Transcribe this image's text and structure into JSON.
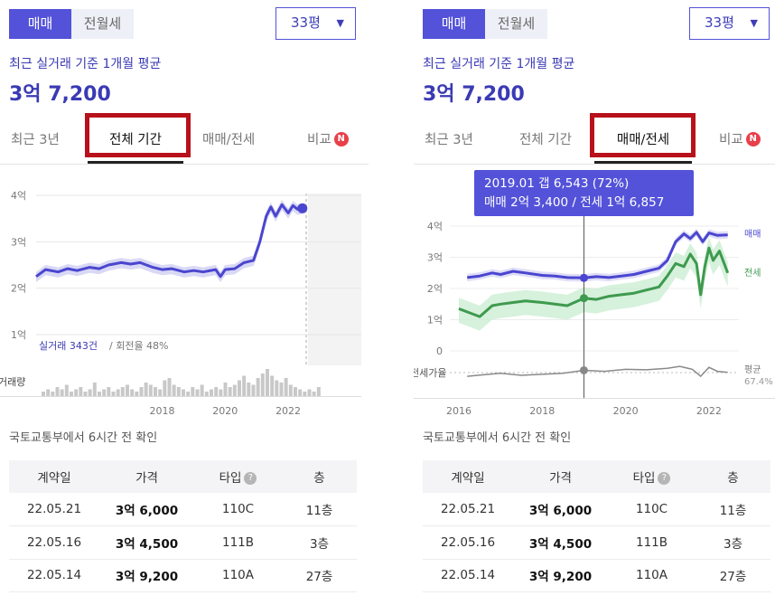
{
  "deal_toggle": {
    "options": [
      "매매",
      "전월세"
    ],
    "selected": "매매"
  },
  "size_select": {
    "value": "33평"
  },
  "average": {
    "label": "최근 실거래 기준 1개월 평균",
    "value": "3억 7,200"
  },
  "tabs": {
    "items": [
      "최근 3년",
      "전체 기간",
      "매매/전세",
      "비교"
    ],
    "badge": "N"
  },
  "left": {
    "active_tab": "전체 기간",
    "stats": {
      "trade_label": "실거래 343건",
      "turnover_label": "/ 회전율 48%"
    },
    "volume_label": "거래량"
  },
  "right": {
    "active_tab": "매매/전세",
    "tooltip": {
      "line1": "2019.01  갭 6,543 (72%)",
      "line2": "매매 2억 3,400 / 전세 1억 6,857"
    },
    "series_labels": {
      "sale": "매매",
      "jeonse": "전세"
    },
    "ratio_label": "전세가율",
    "ratio_avg_label": "평균",
    "ratio_avg_value": "67.4%"
  },
  "chart_data": [
    {
      "type": "line",
      "x_range": [
        2014.0,
        2022.6
      ],
      "xticks": [
        "2018",
        "2020",
        "2022"
      ],
      "y_unit": "억",
      "ylim": [
        1,
        4
      ],
      "yticks": [
        "4억",
        "3억",
        "2억",
        "1억"
      ],
      "series": [
        {
          "name": "매매",
          "color": "#4a46cf",
          "x": [
            2014.0,
            2014.3,
            2014.7,
            2015.0,
            2015.3,
            2015.7,
            2016.0,
            2016.3,
            2016.7,
            2017.0,
            2017.3,
            2017.7,
            2018.0,
            2018.3,
            2018.7,
            2019.0,
            2019.3,
            2019.7,
            2019.85,
            2020.0,
            2020.3,
            2020.6,
            2020.9,
            2021.1,
            2021.3,
            2021.45,
            2021.6,
            2021.8,
            2022.0,
            2022.15,
            2022.3,
            2022.45
          ],
          "values": [
            2.25,
            2.4,
            2.35,
            2.42,
            2.38,
            2.45,
            2.42,
            2.5,
            2.55,
            2.52,
            2.55,
            2.45,
            2.4,
            2.42,
            2.35,
            2.38,
            2.35,
            2.4,
            2.25,
            2.4,
            2.42,
            2.55,
            2.6,
            3.0,
            3.55,
            3.75,
            3.55,
            3.8,
            3.62,
            3.78,
            3.7,
            3.72
          ]
        }
      ],
      "volume": {
        "label": "거래량",
        "values": [
          2,
          3,
          2,
          4,
          3,
          5,
          2,
          3,
          4,
          2,
          3,
          6,
          2,
          3,
          4,
          2,
          3,
          4,
          5,
          3,
          2,
          4,
          6,
          5,
          4,
          3,
          7,
          8,
          5,
          4,
          3,
          2,
          4,
          3,
          5,
          2,
          3,
          4,
          3,
          6,
          4,
          5,
          7,
          9,
          6,
          5,
          8,
          10,
          12,
          9,
          7,
          6,
          8,
          5,
          4,
          3,
          2,
          3,
          2,
          4
        ]
      }
    },
    {
      "type": "line",
      "x_range": [
        2016.0,
        2022.5
      ],
      "xticks": [
        "2016",
        "2018",
        "2020",
        "2022"
      ],
      "y_unit": "억",
      "ylim": [
        0,
        4
      ],
      "yticks": [
        "4억",
        "3억",
        "2억",
        "1억",
        "0"
      ],
      "series": [
        {
          "name": "매매",
          "color": "#4a46cf",
          "x": [
            2016.2,
            2016.5,
            2016.8,
            2017.0,
            2017.3,
            2017.6,
            2018.0,
            2018.3,
            2018.6,
            2019.0,
            2019.3,
            2019.6,
            2019.9,
            2020.2,
            2020.5,
            2020.8,
            2021.0,
            2021.2,
            2021.4,
            2021.55,
            2021.7,
            2021.85,
            2022.0,
            2022.2,
            2022.45
          ],
          "values": [
            2.35,
            2.4,
            2.5,
            2.45,
            2.55,
            2.5,
            2.42,
            2.4,
            2.35,
            2.34,
            2.38,
            2.35,
            2.4,
            2.45,
            2.55,
            2.65,
            2.9,
            3.5,
            3.75,
            3.6,
            3.8,
            3.5,
            3.78,
            3.7,
            3.72
          ]
        },
        {
          "name": "전세",
          "color": "#3e9a4e",
          "x": [
            2016.0,
            2016.3,
            2016.5,
            2016.8,
            2017.0,
            2017.3,
            2017.6,
            2018.0,
            2018.3,
            2018.6,
            2019.0,
            2019.3,
            2019.6,
            2019.9,
            2020.2,
            2020.5,
            2020.8,
            2021.0,
            2021.2,
            2021.4,
            2021.55,
            2021.7,
            2021.8,
            2021.9,
            2022.0,
            2022.1,
            2022.25,
            2022.45
          ],
          "values": [
            1.35,
            1.2,
            1.1,
            1.45,
            1.5,
            1.55,
            1.6,
            1.55,
            1.5,
            1.45,
            1.69,
            1.65,
            1.75,
            1.8,
            1.85,
            1.95,
            2.05,
            2.4,
            2.8,
            2.7,
            3.1,
            2.8,
            1.8,
            2.7,
            3.3,
            2.9,
            3.2,
            2.5
          ]
        }
      ],
      "ratio": {
        "name": "전세가율",
        "average": 67.4,
        "x": [
          2016.2,
          2016.6,
          2017.0,
          2017.5,
          2018.0,
          2018.5,
          2019.0,
          2019.5,
          2020.0,
          2020.5,
          2021.0,
          2021.3,
          2021.6,
          2021.8,
          2022.0,
          2022.2,
          2022.45
        ],
        "values": [
          60,
          63,
          66,
          62,
          64,
          66,
          72,
          70,
          74,
          73,
          76,
          80,
          74,
          60,
          78,
          70,
          68
        ]
      }
    }
  ],
  "source_note": "국토교통부에서 6시간 전 확인",
  "table": {
    "headers": [
      "계약일",
      "가격",
      "타입",
      "층"
    ],
    "type_help": "?",
    "rows": [
      [
        "22.05.21",
        "3억 6,000",
        "110C",
        "11층"
      ],
      [
        "22.05.16",
        "3억 4,500",
        "111B",
        "3층"
      ],
      [
        "22.05.14",
        "3억 9,200",
        "110A",
        "27층"
      ]
    ]
  }
}
